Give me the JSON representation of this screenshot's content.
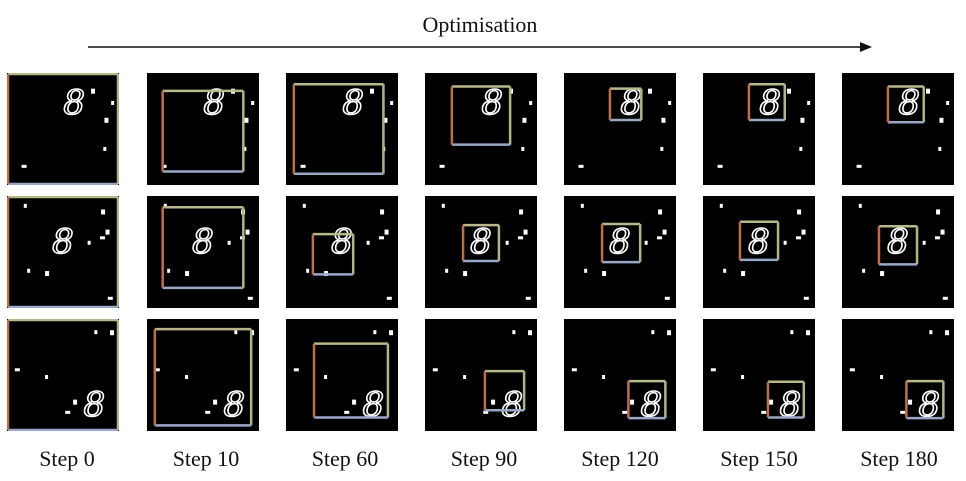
{
  "title": "Optimisation",
  "step_labels": [
    "Step 0",
    "Step 10",
    "Step 60",
    "Step 90",
    "Step 120",
    "Step 150",
    "Step 180"
  ],
  "colors": {
    "box_top": "#b8b88a",
    "box_left": "#b87050",
    "box_right": "#a8b888",
    "box_bottom": "#9aa8c8",
    "digit": "#ffffff",
    "background": "#000000"
  },
  "rows": [
    {
      "row": "top",
      "digit_glyph": "8",
      "boxes": [
        {
          "step": 0,
          "fraction_of_image": 1.0
        },
        {
          "step": 10,
          "fraction_of_image": 0.72
        },
        {
          "step": 60,
          "fraction_of_image": 0.8
        },
        {
          "step": 90,
          "fraction_of_image": 0.52
        },
        {
          "step": 120,
          "fraction_of_image": 0.28
        },
        {
          "step": 150,
          "fraction_of_image": 0.32
        },
        {
          "step": 180,
          "fraction_of_image": 0.32
        }
      ]
    },
    {
      "row": "middle",
      "digit_glyph": "8",
      "boxes": [
        {
          "step": 0,
          "fraction_of_image": 1.0
        },
        {
          "step": 10,
          "fraction_of_image": 0.72
        },
        {
          "step": 60,
          "fraction_of_image": 0.36
        },
        {
          "step": 90,
          "fraction_of_image": 0.32
        },
        {
          "step": 120,
          "fraction_of_image": 0.34
        },
        {
          "step": 150,
          "fraction_of_image": 0.34
        },
        {
          "step": 180,
          "fraction_of_image": 0.34
        }
      ]
    },
    {
      "row": "bottom",
      "digit_glyph": "8",
      "boxes": [
        {
          "step": 0,
          "fraction_of_image": 1.0
        },
        {
          "step": 10,
          "fraction_of_image": 0.86
        },
        {
          "step": 60,
          "fraction_of_image": 0.66
        },
        {
          "step": 90,
          "fraction_of_image": 0.35
        },
        {
          "step": 120,
          "fraction_of_image": 0.33
        },
        {
          "step": 150,
          "fraction_of_image": 0.32
        },
        {
          "step": 180,
          "fraction_of_image": 0.33
        }
      ]
    }
  ]
}
